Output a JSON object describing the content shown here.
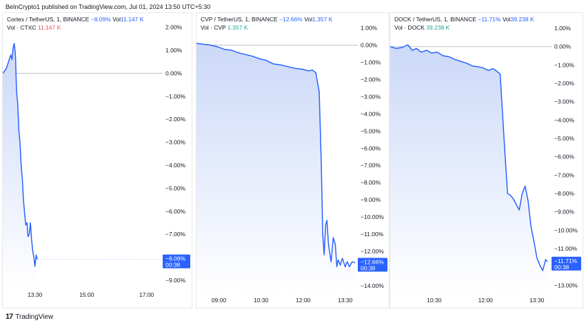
{
  "header": {
    "publish_text": "BeInCrypto1 published on TradingView.com, Jul 01, 2024 13:50 UTC+5:30"
  },
  "footer": {
    "brand": "TradingView"
  },
  "colors": {
    "line": "#2962ff",
    "fill_top": "#c5d4f7",
    "fill_bottom": "#ffffff",
    "badge": "#2962ff",
    "negative": "#2962ff",
    "vol_red": "#ef5350",
    "vol_green": "#26a69a"
  },
  "panels": [
    {
      "symbol": "Cortex / TetherUS, 1, BINANCE",
      "change": "−8.09%",
      "vol_prefix": "Vol",
      "vol_value": "11.147 K",
      "vol_label": "Vol · CTXC",
      "vol_label_value": "11.147 K",
      "vol_color": "red",
      "badge_value": "−8.09%",
      "badge_time": "00:38"
    },
    {
      "symbol": "CVP / TetherUS, 1, BINANCE",
      "change": "−12.66%",
      "vol_prefix": "Vol",
      "vol_value": "1.357 K",
      "vol_label": "Vol · CVP",
      "vol_label_value": "1.357 K",
      "vol_color": "green",
      "badge_value": "−12.66%",
      "badge_time": "00:38"
    },
    {
      "symbol": "DOCK / TetherUS, 1, BINANCE",
      "change": "−11.71%",
      "vol_prefix": "Vol",
      "vol_value": "39.238 K",
      "vol_label": "Vol · DOCK",
      "vol_label_value": "39.238 K",
      "vol_color": "green",
      "badge_value": "−11.71%",
      "badge_time": "00:38"
    }
  ],
  "chart_data": [
    {
      "type": "area",
      "title": "Cortex / TetherUS, 1, BINANCE",
      "ylabel": "",
      "y_ticks": [
        "2.00%",
        "1.00%",
        "0.00%",
        "−1.00%",
        "−2.00%",
        "−3.00%",
        "−4.00%",
        "−5.00%",
        "−6.00%",
        "−7.00%",
        "−8.00%",
        "−9.00%"
      ],
      "y_tick_values": [
        2,
        1,
        0,
        -1,
        -2,
        -3,
        -4,
        -5,
        -6,
        -7,
        -8,
        -9
      ],
      "ylim": [
        -9.3,
        2.2
      ],
      "x_ticks": [
        "13:30",
        "15:00",
        "17:00"
      ],
      "x_tick_values": [
        25,
        70,
        122
      ],
      "xlim": [
        -3,
        136
      ],
      "baseline": 0,
      "current": -8.09,
      "series": [
        {
          "x": [
            -3,
            0,
            2,
            4,
            5,
            6,
            7,
            8,
            9,
            10,
            11,
            12,
            13,
            14,
            15,
            16,
            17,
            18,
            19,
            20,
            21,
            22,
            23,
            24,
            25,
            26,
            27
          ],
          "y": [
            0,
            0.2,
            0.5,
            0.8,
            0.6,
            1.1,
            1.3,
            0.8,
            -0.8,
            -1.3,
            -2.5,
            -3.0,
            -4.0,
            -4.6,
            -5.5,
            -6.1,
            -6.6,
            -6.5,
            -7.1,
            -7.0,
            -6.5,
            -7.2,
            -7.7,
            -8.0,
            -8.4,
            -7.9,
            -8.09
          ]
        }
      ]
    },
    {
      "type": "area",
      "title": "CVP / TetherUS, 1, BINANCE",
      "ylabel": "",
      "y_ticks": [
        "1.00%",
        "0.00%",
        "−1.00%",
        "−2.00%",
        "−3.00%",
        "−4.00%",
        "−5.00%",
        "−6.00%",
        "−7.00%",
        "−8.00%",
        "−9.00%",
        "−10.00%",
        "−11.00%",
        "−12.00%",
        "−13.00%",
        "−14.00%"
      ],
      "y_tick_values": [
        1,
        0,
        -1,
        -2,
        -3,
        -4,
        -5,
        -6,
        -7,
        -8,
        -9,
        -10,
        -11,
        -12,
        -13,
        -14
      ],
      "ylim": [
        -14.4,
        1.3
      ],
      "x_ticks": [
        "09:00",
        "10:30",
        "12:00",
        "13:30"
      ],
      "x_tick_values": [
        32,
        92,
        152,
        212
      ],
      "xlim": [
        0,
        230
      ],
      "baseline": 0,
      "current": -12.66,
      "series": [
        {
          "x": [
            0,
            10,
            20,
            30,
            40,
            50,
            60,
            70,
            80,
            90,
            100,
            110,
            120,
            130,
            140,
            150,
            160,
            165,
            170,
            175,
            178,
            180,
            182,
            184,
            186,
            188,
            190,
            192,
            195,
            198,
            200,
            202,
            205,
            208,
            212,
            215,
            218,
            222,
            226
          ],
          "y": [
            0.1,
            0.05,
            0.0,
            -0.1,
            -0.25,
            -0.3,
            -0.45,
            -0.55,
            -0.65,
            -0.8,
            -0.9,
            -1.1,
            -1.15,
            -1.25,
            -1.35,
            -1.4,
            -1.5,
            -1.45,
            -1.6,
            -2.7,
            -7.0,
            -11.0,
            -12.2,
            -10.5,
            -10.2,
            -11.5,
            -12.1,
            -12.6,
            -11.2,
            -11.6,
            -12.9,
            -12.5,
            -12.8,
            -12.4,
            -12.9,
            -12.6,
            -12.9,
            -12.6,
            -12.66
          ]
        }
      ]
    },
    {
      "type": "area",
      "title": "DOCK / TetherUS, 1, BINANCE",
      "ylabel": "",
      "y_ticks": [
        "1.00%",
        "0.00%",
        "−1.00%",
        "−2.00%",
        "−3.00%",
        "−4.00%",
        "−5.00%",
        "−6.00%",
        "−7.00%",
        "−8.00%",
        "−9.00%",
        "−10.00%",
        "−11.00%",
        "−12.00%",
        "−13.00%"
      ],
      "y_tick_values": [
        1,
        0,
        -1,
        -2,
        -3,
        -4,
        -5,
        -6,
        -7,
        -8,
        -9,
        -10,
        -11,
        -12,
        -13
      ],
      "ylim": [
        -13.4,
        1.3
      ],
      "x_ticks": [
        "10:30",
        "12:00",
        "13:30"
      ],
      "x_tick_values": [
        60,
        130,
        200
      ],
      "xlim": [
        0,
        220
      ],
      "baseline": 0,
      "current": -11.71,
      "series": [
        {
          "x": [
            0,
            8,
            16,
            24,
            30,
            36,
            42,
            50,
            56,
            64,
            72,
            80,
            88,
            96,
            104,
            112,
            120,
            126,
            134,
            140,
            144,
            150,
            156,
            160,
            164,
            168,
            172,
            176,
            180,
            184,
            188,
            192,
            196,
            200,
            204,
            208,
            212,
            214
          ],
          "y": [
            0.0,
            -0.1,
            -0.05,
            0.1,
            -0.2,
            -0.1,
            -0.3,
            -0.2,
            -0.35,
            -0.3,
            -0.5,
            -0.55,
            -0.7,
            -0.8,
            -0.9,
            -1.05,
            -1.1,
            -1.15,
            -1.3,
            -1.2,
            -1.3,
            -1.5,
            -5.5,
            -8.0,
            -8.1,
            -8.3,
            -8.6,
            -8.9,
            -8.0,
            -7.6,
            -8.4,
            -9.8,
            -10.6,
            -11.5,
            -11.9,
            -12.2,
            -11.6,
            -11.71
          ]
        }
      ]
    }
  ]
}
